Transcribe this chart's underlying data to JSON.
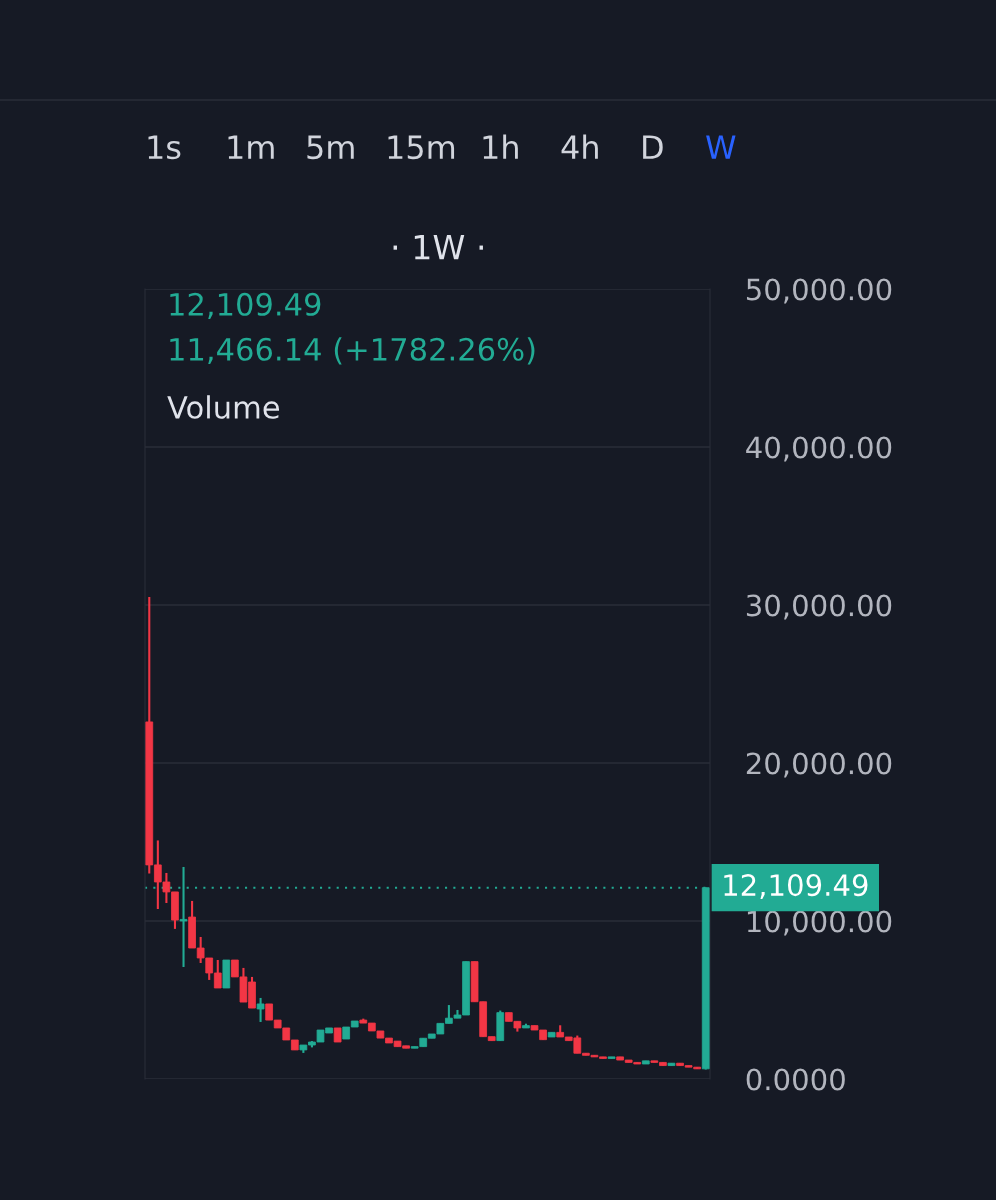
{
  "chart_data": {
    "type": "candlestick",
    "subtitle": "· 1W ·",
    "annotations": [
      "12,109.49",
      "11,466.14 (+1782.26%)",
      "Volume",
      "1s",
      "1m",
      "5m",
      "15m",
      "1h",
      "4h",
      "D",
      "W"
    ],
    "categories": [
      null,
      null,
      null,
      null,
      null,
      null,
      null,
      null,
      null,
      null,
      null,
      null,
      null,
      null,
      null,
      null,
      null,
      null,
      null,
      null,
      null,
      null,
      null,
      null,
      null,
      null,
      null,
      null,
      null,
      null,
      null,
      null,
      null,
      null,
      null,
      null,
      null,
      null,
      null,
      null,
      null,
      null,
      null,
      null,
      null,
      null,
      null,
      null,
      null,
      null,
      null,
      null,
      null,
      null,
      null,
      null,
      null,
      null,
      null,
      null,
      null,
      null,
      null,
      null,
      null,
      null
    ],
    "ohlc": [
      [
        22600,
        30500,
        13000,
        13550
      ],
      [
        13550,
        15100,
        10760,
        12470
      ],
      [
        12470,
        13040,
        11140,
        11840
      ],
      [
        11840,
        11840,
        9500,
        10060
      ],
      [
        10000,
        13420,
        7090,
        10100
      ],
      [
        10250,
        11270,
        8290,
        8290
      ],
      [
        8290,
        8990,
        7340,
        7660
      ],
      [
        7660,
        7660,
        6270,
        6710
      ],
      [
        6710,
        7530,
        5760,
        5760
      ],
      [
        5760,
        7530,
        5760,
        7530
      ],
      [
        7530,
        7530,
        6460,
        6460
      ],
      [
        6460,
        7030,
        4870,
        4870
      ],
      [
        6140,
        6460,
        4490,
        4490
      ],
      [
        4430,
        5130,
        3610,
        4750
      ],
      [
        4750,
        4750,
        3730,
        3730
      ],
      [
        3730,
        3730,
        3230,
        3230
      ],
      [
        3230,
        3230,
        2470,
        2470
      ],
      [
        2470,
        2470,
        1840,
        1840
      ],
      [
        1840,
        2150,
        1650,
        2150
      ],
      [
        2150,
        2400,
        2000,
        2340
      ],
      [
        2340,
        3100,
        2340,
        3100
      ],
      [
        2910,
        3230,
        2910,
        3230
      ],
      [
        3230,
        3230,
        2340,
        2340
      ],
      [
        2530,
        3290,
        2530,
        3290
      ],
      [
        3290,
        3670,
        3290,
        3670
      ],
      [
        3730,
        3820,
        3540,
        3540
      ],
      [
        3540,
        3540,
        3040,
        3040
      ],
      [
        3040,
        3040,
        2590,
        2590
      ],
      [
        2590,
        2590,
        2280,
        2280
      ],
      [
        2400,
        2400,
        2050,
        2050
      ],
      [
        2100,
        2100,
        1950,
        1950
      ],
      [
        1950,
        2050,
        1950,
        2050
      ],
      [
        2050,
        2580,
        2050,
        2580
      ],
      [
        2580,
        2850,
        2580,
        2850
      ],
      [
        2850,
        3520,
        2850,
        3520
      ],
      [
        3520,
        4680,
        3520,
        3850
      ],
      [
        3850,
        4370,
        3850,
        4050
      ],
      [
        4050,
        7430,
        4050,
        7430
      ],
      [
        7430,
        7430,
        4890,
        4890
      ],
      [
        4890,
        4890,
        2680,
        2680
      ],
      [
        2680,
        2680,
        2430,
        2430
      ],
      [
        2430,
        4330,
        2430,
        4200
      ],
      [
        4200,
        4200,
        3650,
        3650
      ],
      [
        3650,
        3650,
        3000,
        3230
      ],
      [
        3230,
        3500,
        3230,
        3380
      ],
      [
        3380,
        3380,
        3100,
        3100
      ],
      [
        3100,
        3100,
        2490,
        2490
      ],
      [
        2660,
        2950,
        2660,
        2950
      ],
      [
        2950,
        3400,
        2660,
        2660
      ],
      [
        2660,
        2660,
        2430,
        2430
      ],
      [
        2600,
        2750,
        1630,
        1630
      ],
      [
        1630,
        1630,
        1500,
        1500
      ],
      [
        1500,
        1500,
        1400,
        1400
      ],
      [
        1400,
        1400,
        1300,
        1300
      ],
      [
        1300,
        1400,
        1300,
        1400
      ],
      [
        1400,
        1400,
        1200,
        1200
      ],
      [
        1200,
        1200,
        1050,
        1050
      ],
      [
        1050,
        1050,
        950,
        950
      ],
      [
        950,
        1150,
        950,
        1150
      ],
      [
        1150,
        1150,
        1050,
        1050
      ],
      [
        1050,
        1050,
        850,
        850
      ],
      [
        850,
        1000,
        850,
        1000
      ],
      [
        1000,
        1000,
        850,
        850
      ],
      [
        850,
        850,
        750,
        750
      ],
      [
        750,
        750,
        640,
        643.35
      ],
      [
        643.35,
        12109.49,
        600,
        12109.49
      ]
    ],
    "colors": [
      "#f23645",
      "#f23645",
      "#f23645",
      "#f23645",
      "#22ab94",
      "#f23645",
      "#f23645",
      "#f23645",
      "#f23645",
      "#22ab94",
      "#f23645",
      "#f23645",
      "#f23645",
      "#22ab94",
      "#f23645",
      "#f23645",
      "#f23645",
      "#f23645",
      "#22ab94",
      "#22ab94",
      "#22ab94",
      "#22ab94",
      "#f23645",
      "#22ab94",
      "#22ab94",
      "#f23645",
      "#f23645",
      "#f23645",
      "#f23645",
      "#f23645",
      "#f23645",
      "#22ab94",
      "#22ab94",
      "#22ab94",
      "#22ab94",
      "#22ab94",
      "#22ab94",
      "#22ab94",
      "#f23645",
      "#f23645",
      "#f23645",
      "#22ab94",
      "#f23645",
      "#f23645",
      "#22ab94",
      "#f23645",
      "#f23645",
      "#22ab94",
      "#f23645",
      "#f23645",
      "#f23645",
      "#f23645",
      "#f23645",
      "#f23645",
      "#22ab94",
      "#f23645",
      "#f23645",
      "#f23645",
      "#22ab94",
      "#f23645",
      "#f23645",
      "#22ab94",
      "#f23645",
      "#f23645",
      "#f23645",
      "#22ab94"
    ],
    "ylim": [
      0,
      50000
    ],
    "yticks": [
      {
        "value": 0,
        "label": "0.0000"
      },
      {
        "value": 10000,
        "label": "10,000.00"
      },
      {
        "value": 20000,
        "label": "20,000.00"
      },
      {
        "value": 30000,
        "label": "30,000.00"
      },
      {
        "value": 40000,
        "label": "40,000.00"
      },
      {
        "value": 50000,
        "label": "50,000.00"
      }
    ],
    "grid": "y",
    "ref_lines": [
      {
        "axis": "y",
        "value": 12109.49,
        "label": "12,109.49",
        "color": "#22ab94",
        "line_style": "dotted"
      }
    ]
  }
}
